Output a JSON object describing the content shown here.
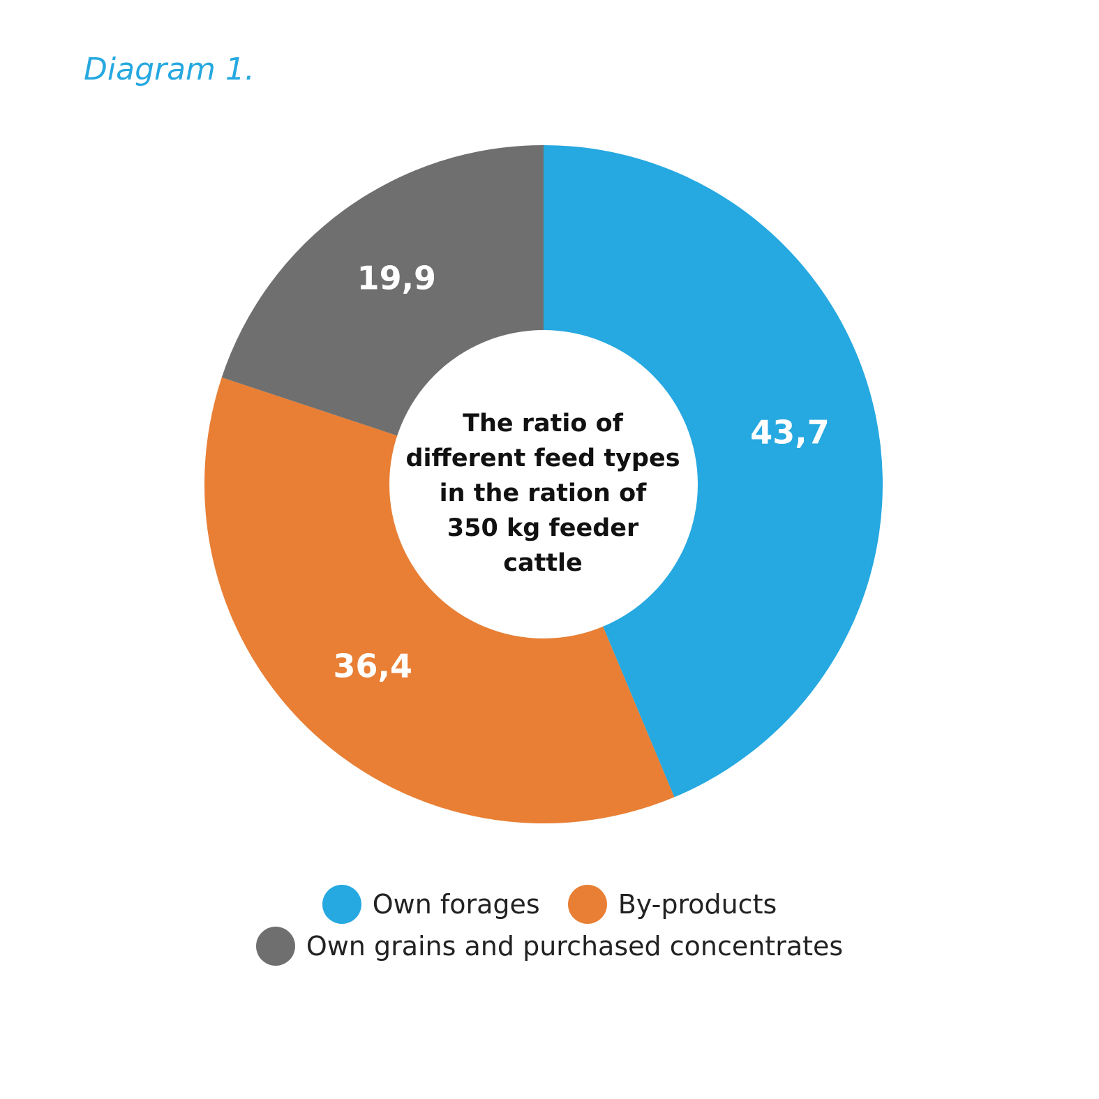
{
  "figure_label": "Diagram 1.",
  "chart_data": {
    "type": "pie",
    "variant": "donut",
    "title": "The ratio of different feed types in the ration of 350 kg feeder cattle",
    "title_lines": [
      "The ratio of",
      "different feed types",
      "in the ration of",
      "350 kg feeder",
      "cattle"
    ],
    "slices": [
      {
        "name": "Own forages",
        "value": 43.7,
        "label": "43,7",
        "color": "#26a8e0"
      },
      {
        "name": "By-products",
        "value": 36.4,
        "label": "36,4",
        "color": "#e87f35"
      },
      {
        "name": "Own grains and purchased concentrates",
        "value": 19.9,
        "label": "19,9",
        "color": "#6f6f6f"
      }
    ],
    "legend": [
      [
        "Own forages",
        "By-products"
      ],
      [
        "Own grains and purchased concentrates"
      ]
    ]
  }
}
